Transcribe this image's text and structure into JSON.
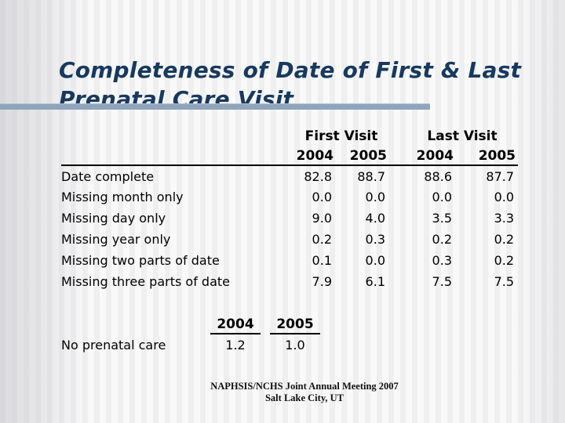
{
  "slide": {
    "title": {
      "line1": "Completeness of Date of First & Last",
      "line2": "Prenatal Care Visit"
    },
    "visit_table": {
      "group_headers": [
        "First Visit",
        "Last Visit"
      ],
      "year_headers": [
        "2004",
        "2005",
        "2004",
        "2005"
      ],
      "rows": [
        {
          "label": "Date complete",
          "values": [
            "82.8",
            "88.7",
            "88.6",
            "87.7"
          ]
        },
        {
          "label": "Missing month only",
          "values": [
            "0.0",
            "0.0",
            "0.0",
            "0.0"
          ]
        },
        {
          "label": "Missing day only",
          "values": [
            "9.0",
            "4.0",
            "3.5",
            "3.3"
          ]
        },
        {
          "label": "Missing year only",
          "values": [
            "0.2",
            "0.3",
            "0.2",
            "0.2"
          ]
        },
        {
          "label": "Missing two parts of date",
          "values": [
            "0.1",
            "0.0",
            "0.3",
            "0.2"
          ]
        },
        {
          "label": "Missing three parts of date",
          "values": [
            "7.9",
            "6.1",
            "7.5",
            "7.5"
          ]
        }
      ]
    },
    "no_care_table": {
      "year_headers": [
        "2004",
        "2005"
      ],
      "row": {
        "label": "No prenatal care",
        "values": [
          "1.2",
          "1.0"
        ]
      }
    },
    "footer": {
      "line1": "NAPHSIS/NCHS Joint Annual Meeting 2007",
      "line2": "Salt Lake City, UT"
    },
    "colors": {
      "title_text": "#17395f",
      "divider_bar": "#8fa5bd",
      "table_text": "#000000",
      "background_stripe_dark": "#efeff0",
      "background_stripe_light": "#f9f9fa"
    }
  }
}
